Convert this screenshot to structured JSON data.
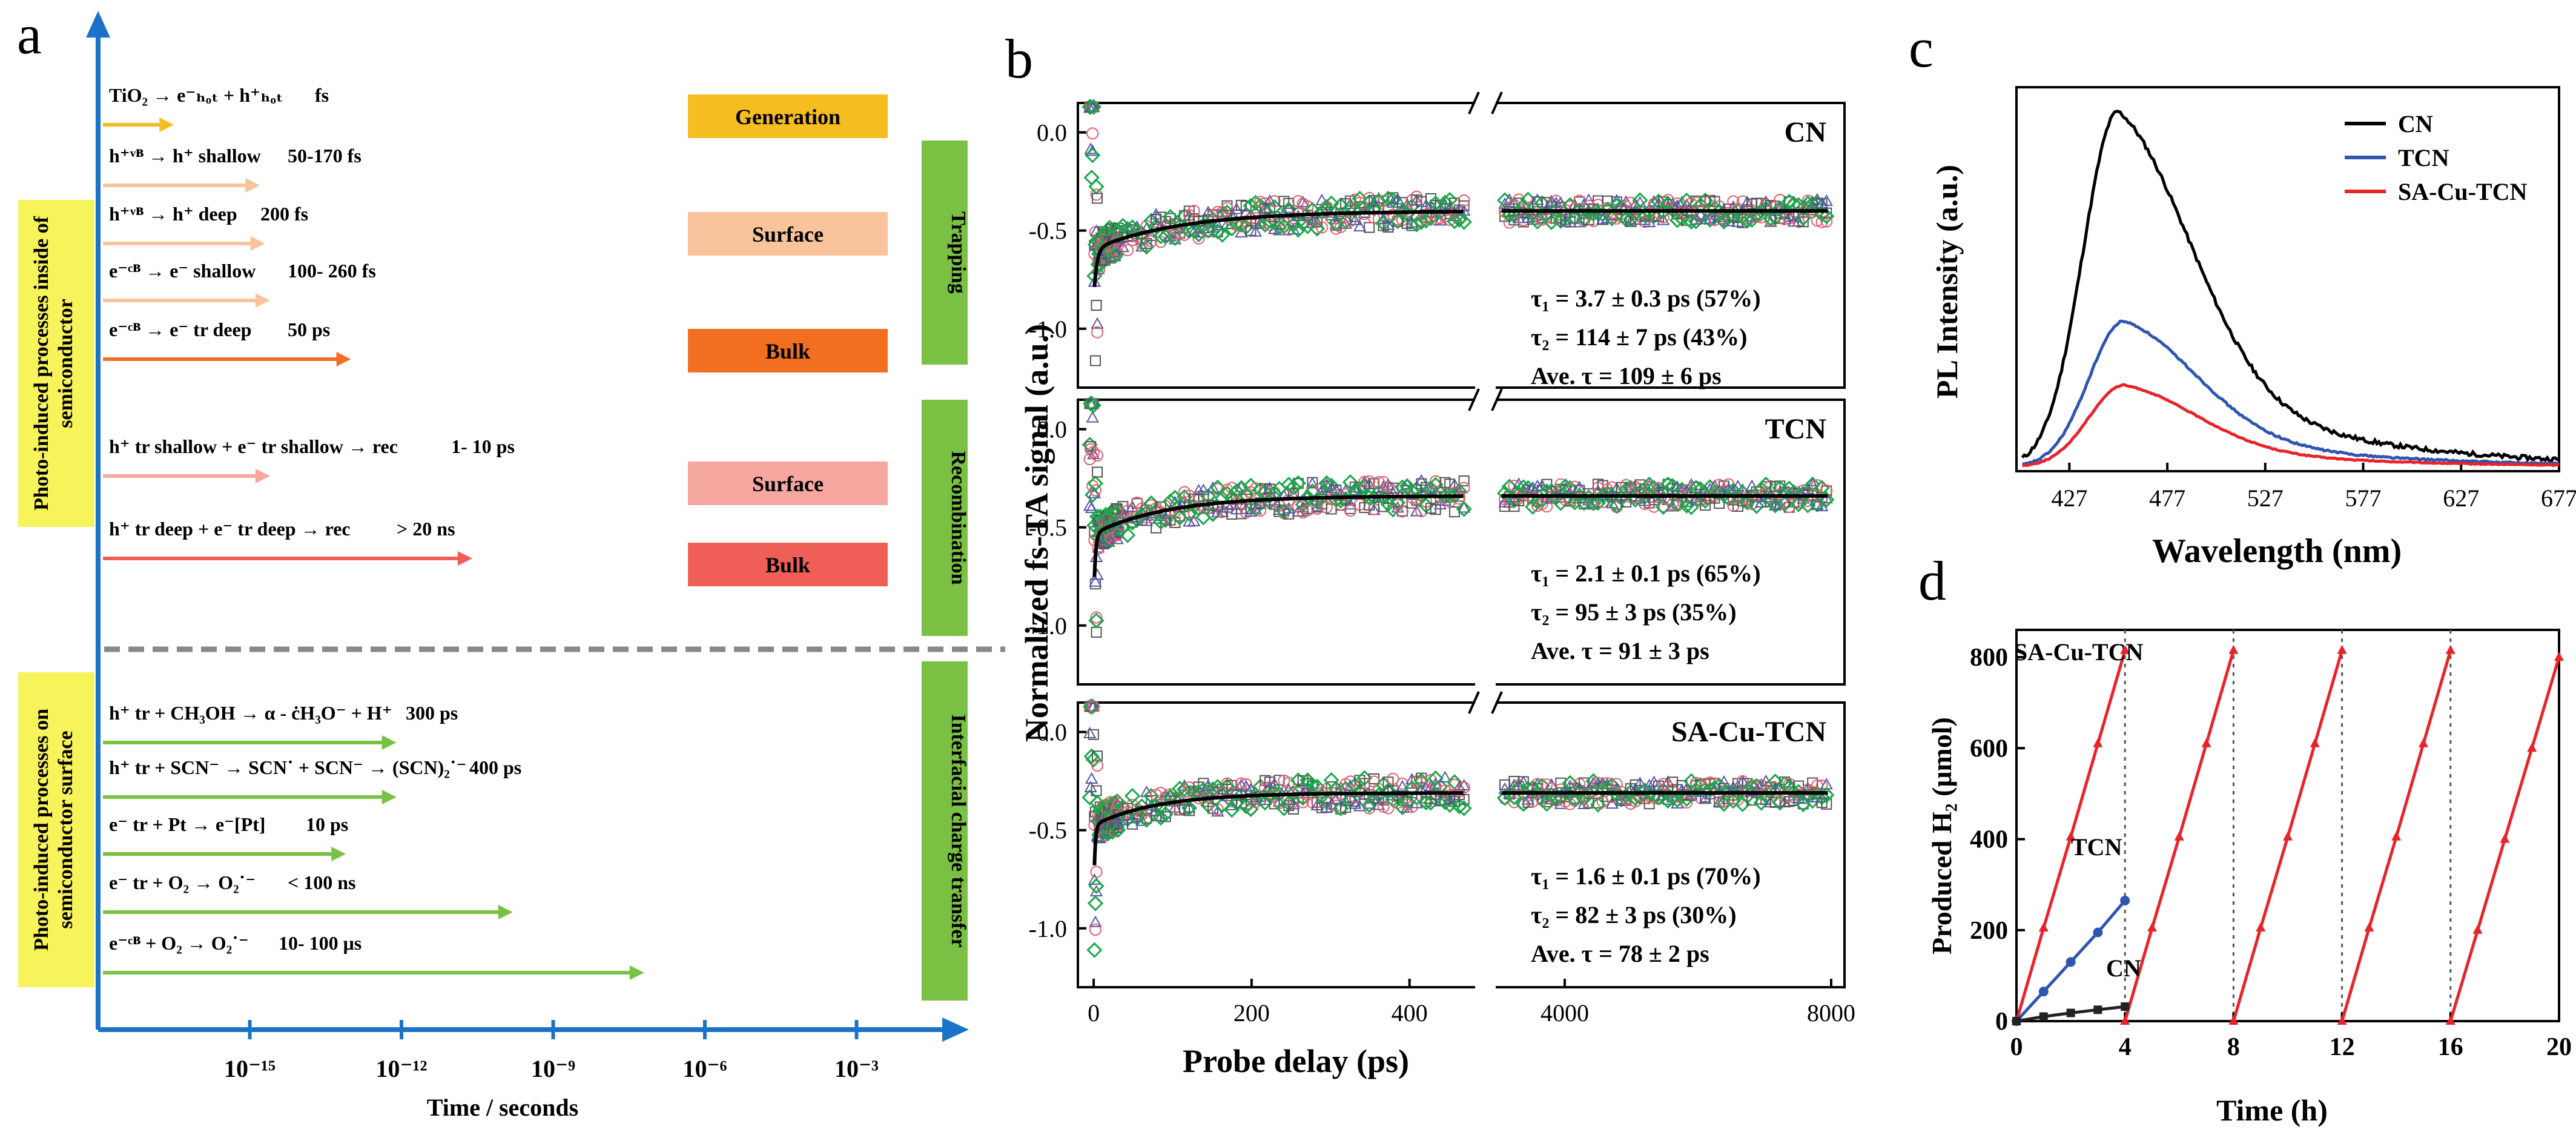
{
  "panel_labels": {
    "a": "a",
    "b": "b",
    "c": "c",
    "d": "d"
  },
  "colors": {
    "axis_blue": "#1a73c8",
    "green": "#7ac143",
    "yellow_label": "#f7f35a"
  },
  "chart_data": [
    {
      "id": "a",
      "type": "timeline",
      "xlabel": "Time / seconds",
      "xticks": [
        "10⁻¹⁵",
        "10⁻¹²",
        "10⁻⁹",
        "10⁻⁶",
        "10⁻³"
      ],
      "xtick_exponents": [
        -15,
        -12,
        -9,
        -6,
        -3
      ],
      "xlim_log10": [
        -18,
        0
      ],
      "side_labels": [
        "Photo-induced processes inside of semiconductor",
        "Photo-induced processes on semiconductor surface"
      ],
      "bands": [
        {
          "label": "Trapping",
          "color": "#7ac143"
        },
        {
          "label": "Recombination",
          "color": "#7ac143"
        },
        {
          "label": "Interfacial charge transfer",
          "color": "#7ac143"
        }
      ],
      "boxes": [
        {
          "label": "Generation",
          "color": "#f5bd1f"
        },
        {
          "label": "Surface",
          "color": "#f9c39b"
        },
        {
          "label": "Bulk",
          "color": "#f26f21"
        },
        {
          "label": "Surface",
          "color": "#f6a7a0"
        },
        {
          "label": "Bulk",
          "color": "#ef5f58"
        }
      ],
      "processes": [
        {
          "label": "TiO₂ → e⁻ₕₒₜ + h⁺ₕₒₜ",
          "time": "fs",
          "end_log10": -16.5,
          "color": "#f5bd1f"
        },
        {
          "label": "h⁺ᵛᴮ → h⁺ shallow",
          "time": "50-170 fs",
          "end_log10": -14.8,
          "color": "#f9c39b"
        },
        {
          "label": "h⁺ᵛᴮ → h⁺ deep",
          "time": "200 fs",
          "end_log10": -14.7,
          "color": "#f9c39b"
        },
        {
          "label": "e⁻ᶜᴮ → e⁻ shallow",
          "time": "100- 260 fs",
          "end_log10": -14.6,
          "color": "#f9c39b"
        },
        {
          "label": "e⁻ᶜᴮ → e⁻ tr deep",
          "time": "50 ps",
          "end_log10": -13.0,
          "color": "#f26f21"
        },
        {
          "label": "h⁺ tr shallow + e⁻ tr shallow → rec",
          "time": "1- 10 ps",
          "end_log10": -14.6,
          "color": "#f6a7a0"
        },
        {
          "label": "h⁺ tr deep + e⁻ tr deep → rec",
          "time": "> 20 ns",
          "end_log10": -10.6,
          "color": "#ef5f58"
        },
        {
          "label": "h⁺ tr + CH₃OH → α - ċH₃O⁻ + H⁺",
          "time": "300 ps",
          "end_log10": -12.1,
          "color": "#7ac143"
        },
        {
          "label": "h⁺ tr + SCN⁻ → SCN˙ + SCN⁻ → (SCN)₂˙⁻",
          "time": "400 ps",
          "end_log10": -12.1,
          "color": "#7ac143"
        },
        {
          "label": "e⁻ tr + Pt → e⁻[Pt]",
          "time": "10 ps",
          "end_log10": -13.1,
          "color": "#7ac143"
        },
        {
          "label": "e⁻ tr + O₂ → O₂˙⁻",
          "time": "< 100 ns",
          "end_log10": -9.8,
          "color": "#7ac143"
        },
        {
          "label": "e⁻ᶜᴮ + O₂ → O₂˙⁻",
          "time": "10- 100 μs",
          "end_log10": -7.2,
          "color": "#7ac143"
        }
      ]
    },
    {
      "id": "b",
      "type": "scatter",
      "xlabel": "Probe delay (ps)",
      "ylabel": "Normalized fs-TA signal (a.u.)",
      "xticks_left": [
        0,
        200,
        400
      ],
      "xticks_right": [
        4000,
        8000
      ],
      "xlim_left": [
        -20,
        480
      ],
      "xlim_right": [
        3000,
        8200
      ],
      "ylim": [
        -1.3,
        0.15
      ],
      "yticks": [
        "0.0",
        "-0.5",
        "-1.0"
      ],
      "ytick_values": [
        0.0,
        -0.5,
        -1.0
      ],
      "series_markers": [
        {
          "name": "square",
          "color": "#555555"
        },
        {
          "name": "triangle",
          "color": "#5555aa"
        },
        {
          "name": "circle",
          "color": "#e06070"
        },
        {
          "name": "diamond",
          "color": "#1aa84a"
        }
      ],
      "subpanels": [
        {
          "name": "CN",
          "fit": {
            "a1": 0.57,
            "t1_ps": 3.7,
            "a2": 0.43,
            "t2_ps": 114,
            "plateau": -0.4,
            "amp": -0.45
          },
          "stats": [
            "τ₁ = 3.7 ± 0.3 ps (57%)",
            "τ₂ = 114 ± 7 ps (43%)",
            "Ave. τ = 109 ± 6 ps"
          ]
        },
        {
          "name": "TCN",
          "fit": {
            "a1": 0.65,
            "t1_ps": 2.1,
            "a2": 0.35,
            "t2_ps": 95,
            "plateau": -0.34,
            "amp": -0.55
          },
          "stats": [
            "τ₁ = 2.1 ± 0.1 ps (65%)",
            "τ₂ = 95 ± 3 ps (35%)",
            "Ave. τ = 91 ± 3 ps"
          ]
        },
        {
          "name": "SA-Cu-TCN",
          "fit": {
            "a1": 0.7,
            "t1_ps": 1.6,
            "a2": 0.3,
            "t2_ps": 82,
            "plateau": -0.31,
            "amp": -0.55
          },
          "stats": [
            "τ₁ = 1.6 ± 0.1 ps (70%)",
            "τ₂ = 82 ± 3 ps (30%)",
            "Ave. τ = 78 ± 2 ps"
          ]
        }
      ]
    },
    {
      "id": "c",
      "type": "line",
      "xlabel": "Wavelength (nm)",
      "ylabel": "PL Intensity (a.u.)",
      "xlim": [
        400,
        677
      ],
      "xticks": [
        427,
        477,
        527,
        577,
        627,
        677
      ],
      "ylim": [
        0,
        1.08
      ],
      "legend": "top-right",
      "series": [
        {
          "name": "CN",
          "color": "#000000",
          "peak_nm": 452,
          "peak": 1.0
        },
        {
          "name": "TCN",
          "color": "#2f55b0",
          "peak_nm": 455,
          "peak": 0.41
        },
        {
          "name": "SA-Cu-TCN",
          "color": "#e8232a",
          "peak_nm": 455,
          "peak": 0.23
        }
      ]
    },
    {
      "id": "d",
      "type": "line",
      "xlabel": "Time (h)",
      "ylabel": "Produced H₂ (μmol)",
      "xlim": [
        0,
        20
      ],
      "ylim": [
        0,
        860
      ],
      "xticks": [
        0,
        4,
        8,
        12,
        16,
        20
      ],
      "yticks": [
        0,
        200,
        400,
        600,
        800
      ],
      "cycle_lines_h": [
        4,
        8,
        12,
        16
      ],
      "series": [
        {
          "name": "SA-Cu-TCN",
          "color": "#e8232a",
          "cycles": [
            {
              "x": [
                0,
                1,
                2,
                3,
                4
              ],
              "y": [
                0,
                205,
                405,
                610,
                815
              ]
            },
            {
              "x": [
                4,
                5,
                6,
                7,
                8
              ],
              "y": [
                0,
                205,
                405,
                610,
                815
              ]
            },
            {
              "x": [
                8,
                9,
                10,
                11,
                12
              ],
              "y": [
                0,
                205,
                405,
                610,
                815
              ]
            },
            {
              "x": [
                12,
                13,
                14,
                15,
                16
              ],
              "y": [
                0,
                205,
                405,
                610,
                815
              ]
            },
            {
              "x": [
                16,
                17,
                18,
                19,
                20
              ],
              "y": [
                0,
                200,
                400,
                600,
                800
              ]
            }
          ]
        },
        {
          "name": "TCN",
          "color": "#2f55b0",
          "cycles": [
            {
              "x": [
                0,
                1,
                2,
                3,
                4
              ],
              "y": [
                0,
                65,
                130,
                195,
                265
              ]
            }
          ]
        },
        {
          "name": "CN",
          "color": "#222222",
          "cycles": [
            {
              "x": [
                0,
                1,
                2,
                3,
                4
              ],
              "y": [
                0,
                10,
                18,
                25,
                32
              ]
            }
          ]
        }
      ]
    }
  ]
}
